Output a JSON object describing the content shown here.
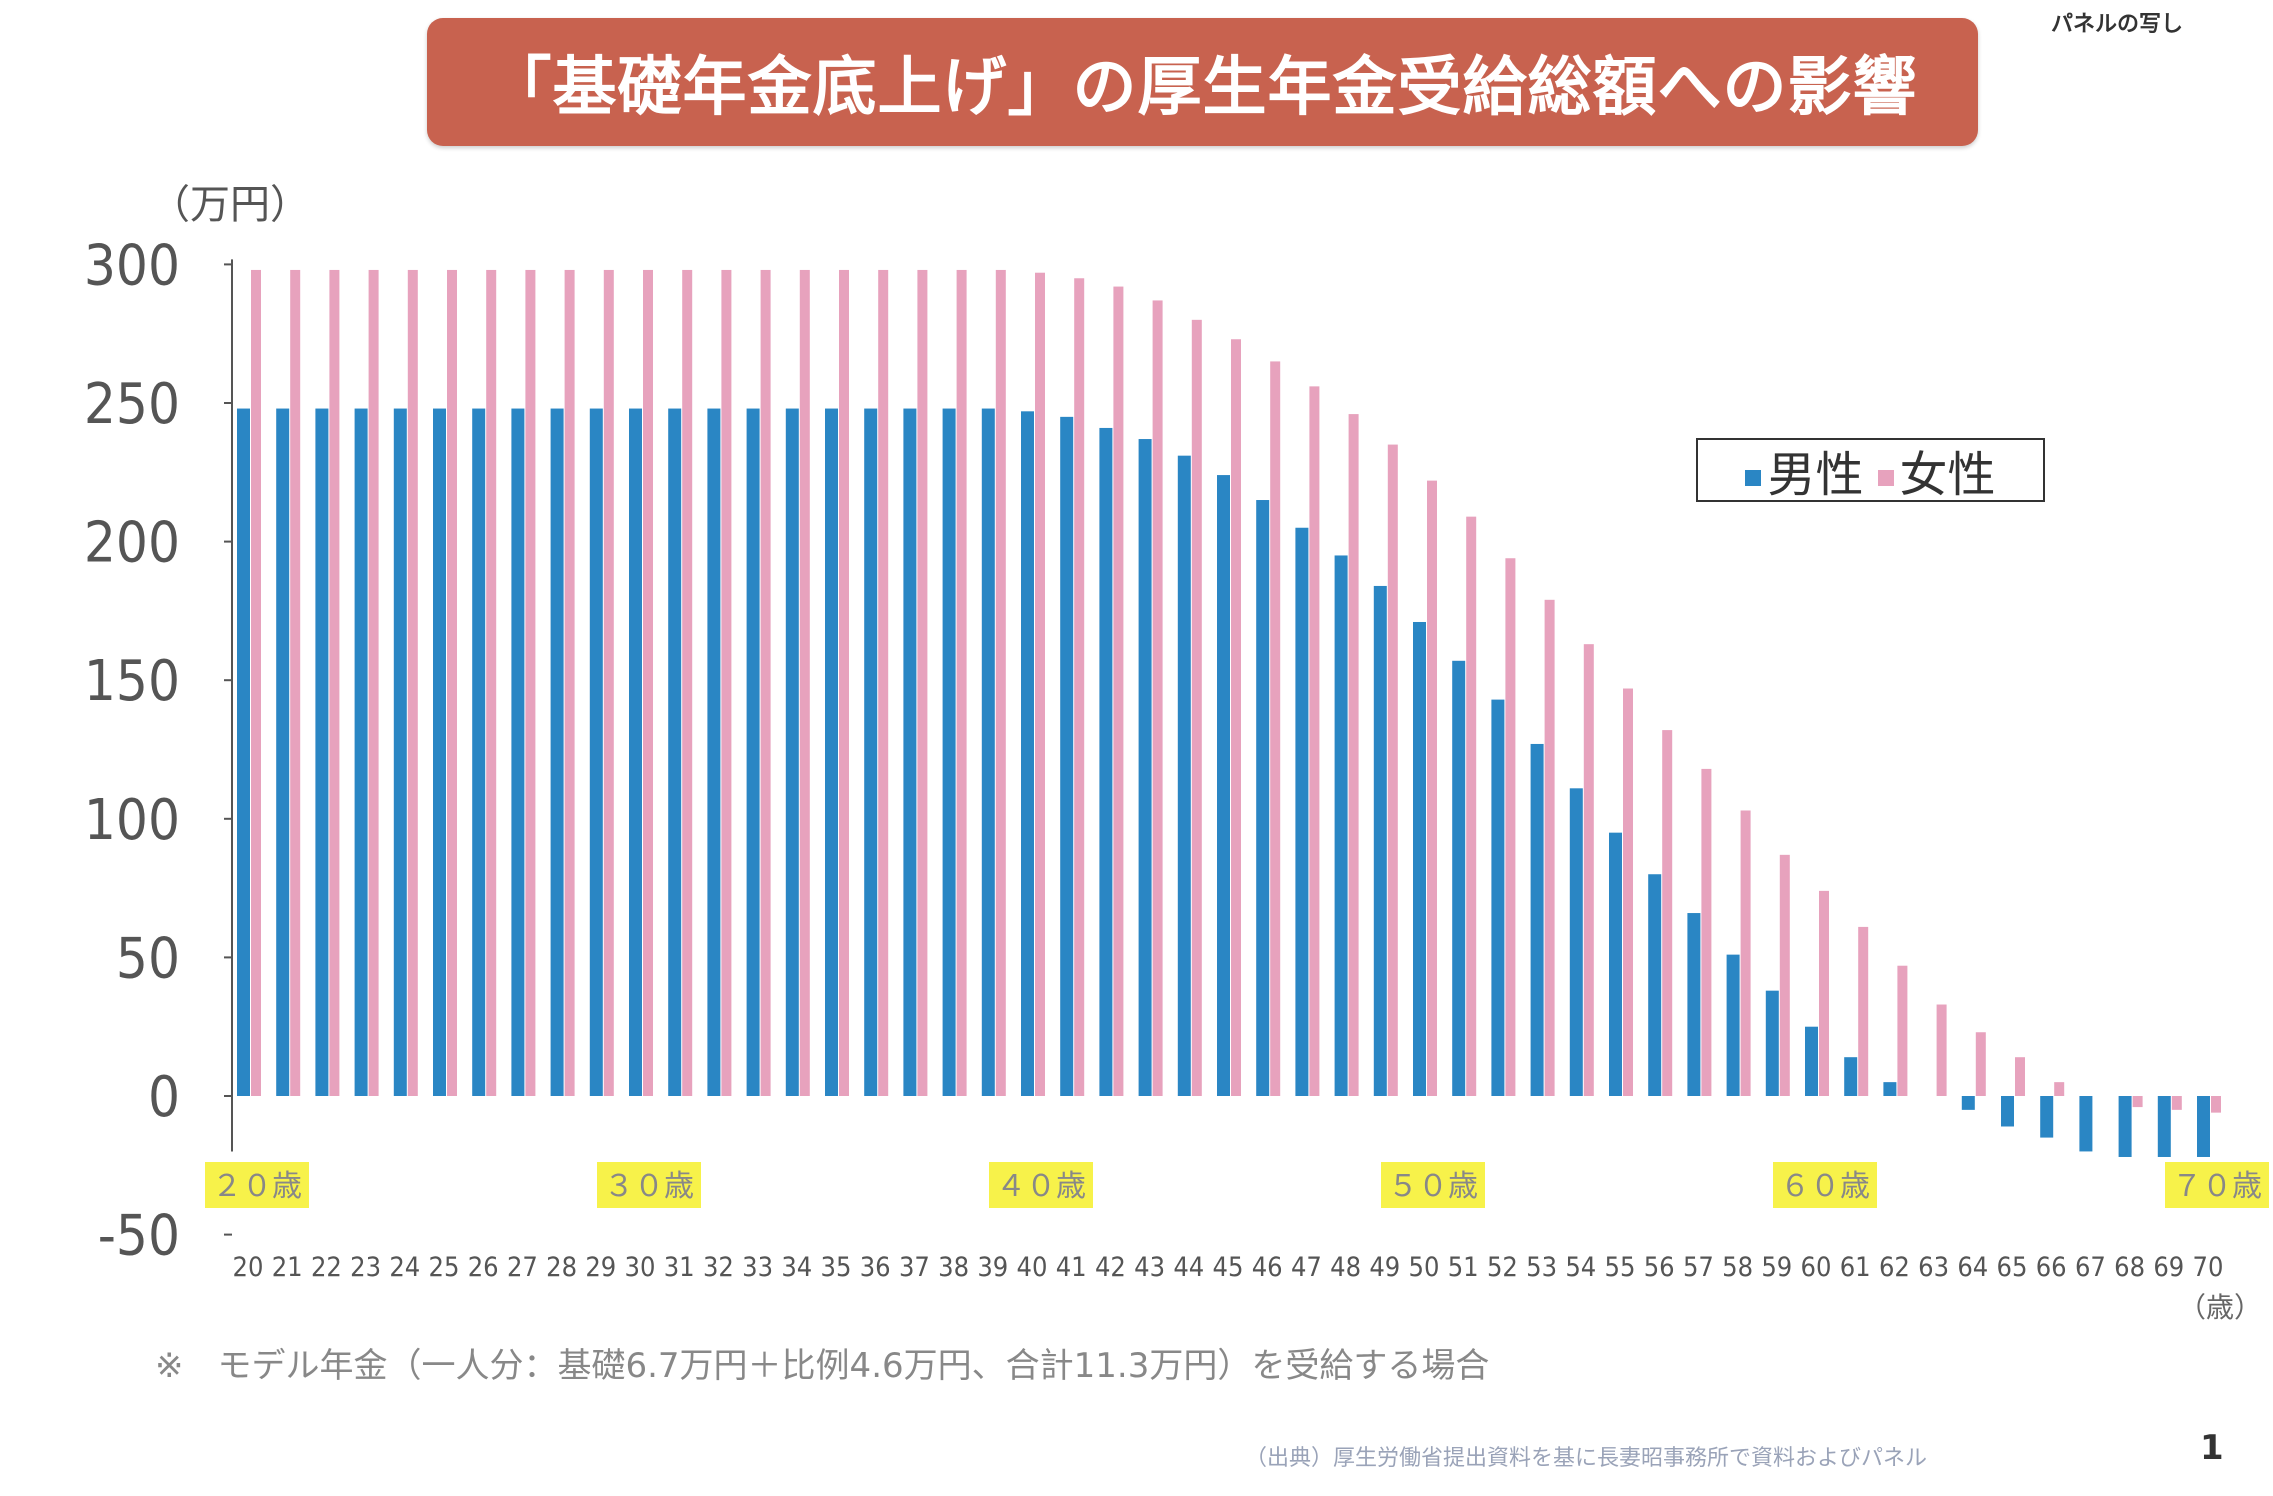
{
  "corner_note": "パネルの写し",
  "legend": {
    "male": "男性",
    "female": "女性"
  },
  "footnote": "※　モデル年金（一人分：基礎6.7万円＋比例4.6万円、合計11.3万円）を受給する場合",
  "source": "（出典）厚生労働省提出資料を基に長妻昭事務所で資料およびパネル",
  "page_number": "1",
  "chart_data": {
    "type": "bar",
    "title": "「基礎年金底上げ」の厚生年金受給総額への影響",
    "ylabel": "（万円）",
    "xlabel": "（歳）",
    "ylim": [
      -50,
      300
    ],
    "yticks": [
      300,
      250,
      200,
      150,
      100,
      50,
      0,
      -50
    ],
    "grid": false,
    "legend_position": "top-right",
    "decade_labels": [
      "２０歳",
      "３０歳",
      "４０歳",
      "５０歳",
      "６０歳",
      "７０歳"
    ],
    "decade_highlight_color": "#f7f24a",
    "categories": [
      "20",
      "21",
      "22",
      "23",
      "24",
      "25",
      "26",
      "27",
      "28",
      "29",
      "30",
      "31",
      "32",
      "33",
      "34",
      "35",
      "36",
      "37",
      "38",
      "39",
      "40",
      "41",
      "42",
      "43",
      "44",
      "45",
      "46",
      "47",
      "48",
      "49",
      "50",
      "51",
      "52",
      "53",
      "54",
      "55",
      "56",
      "57",
      "58",
      "59",
      "60",
      "61",
      "62",
      "63",
      "64",
      "65",
      "66",
      "67",
      "68",
      "69",
      "70"
    ],
    "series": [
      {
        "name": "男性",
        "color": "#2a86c4",
        "values": [
          248,
          248,
          248,
          248,
          248,
          248,
          248,
          248,
          248,
          248,
          248,
          248,
          248,
          248,
          248,
          248,
          248,
          248,
          248,
          248,
          247,
          245,
          241,
          237,
          231,
          224,
          215,
          205,
          195,
          184,
          171,
          157,
          143,
          127,
          111,
          95,
          80,
          66,
          51,
          38,
          25,
          14,
          5,
          0,
          -5,
          -11,
          -15,
          -20,
          -22,
          -22,
          -22
        ]
      },
      {
        "name": "女性",
        "color": "#e7a2bd",
        "values": [
          298,
          298,
          298,
          298,
          298,
          298,
          298,
          298,
          298,
          298,
          298,
          298,
          298,
          298,
          298,
          298,
          298,
          298,
          298,
          298,
          297,
          295,
          292,
          287,
          280,
          273,
          265,
          256,
          246,
          235,
          222,
          209,
          194,
          179,
          163,
          147,
          132,
          118,
          103,
          87,
          74,
          61,
          47,
          33,
          23,
          14,
          5,
          0,
          -4,
          -5,
          -6
        ]
      }
    ]
  }
}
